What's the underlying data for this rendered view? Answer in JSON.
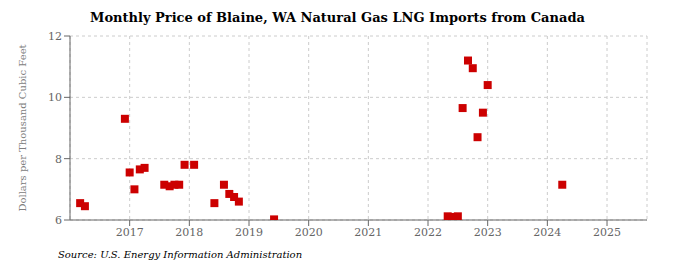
{
  "chart_data": {
    "type": "scatter",
    "title": "Monthly Price of Blaine, WA Natural Gas LNG Imports from Canada",
    "ylabel": "Dollars per Thousand Cubic Feet",
    "source": "Source: U.S. Energy Information Administration",
    "color": "#cc0000",
    "marker": "square",
    "grid": true,
    "xlim": [
      2016.0,
      2025.67
    ],
    "ylim": [
      6.0,
      12.0
    ],
    "yticks": [
      6,
      8,
      10,
      12
    ],
    "xticks": [
      2017,
      2018,
      2019,
      2020,
      2021,
      2022,
      2023,
      2024,
      2025
    ],
    "x": [
      2016.17,
      2016.25,
      2016.92,
      2017.0,
      2017.08,
      2017.17,
      2017.25,
      2017.58,
      2017.67,
      2017.75,
      2017.83,
      2017.92,
      2018.08,
      2018.42,
      2018.58,
      2018.67,
      2018.75,
      2018.83,
      2019.42,
      2022.33,
      2022.42,
      2022.5,
      2022.58,
      2022.67,
      2022.75,
      2022.83,
      2022.92,
      2023.0,
      2024.25
    ],
    "values": [
      6.55,
      6.45,
      9.3,
      7.55,
      7.0,
      7.65,
      7.7,
      7.15,
      7.1,
      7.15,
      7.15,
      7.8,
      7.8,
      6.55,
      7.15,
      6.85,
      6.75,
      6.6,
      6.02,
      6.12,
      6.1,
      6.12,
      9.65,
      11.2,
      10.95,
      8.7,
      9.5,
      10.4,
      7.15
    ]
  }
}
